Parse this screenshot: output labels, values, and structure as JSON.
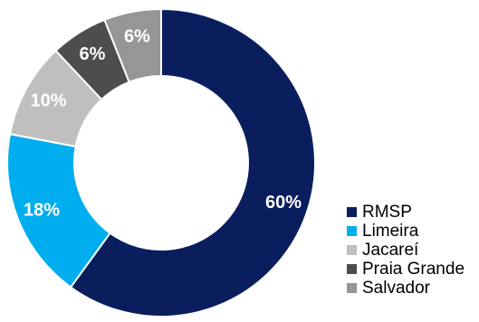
{
  "chart_data": {
    "type": "pie",
    "title": "",
    "donut": true,
    "categories": [
      "RMSP",
      "Limeira",
      "Jacareí",
      "Praia Grande",
      "Salvador"
    ],
    "values": [
      60,
      18,
      10,
      6,
      6
    ],
    "value_labels": [
      "60%",
      "18%",
      "10%",
      "6%",
      "6%"
    ],
    "colors": [
      "#0A1E5E",
      "#00AEEF",
      "#BFBFBF",
      "#4D4D4D",
      "#969696"
    ],
    "label_colors": [
      "#FFFFFF",
      "#FFFFFF",
      "#FFFFFF",
      "#FFFFFF",
      "#FFFFFF"
    ],
    "start": "12 o'clock",
    "direction": "clockwise",
    "legend_position": "bottom-right"
  }
}
